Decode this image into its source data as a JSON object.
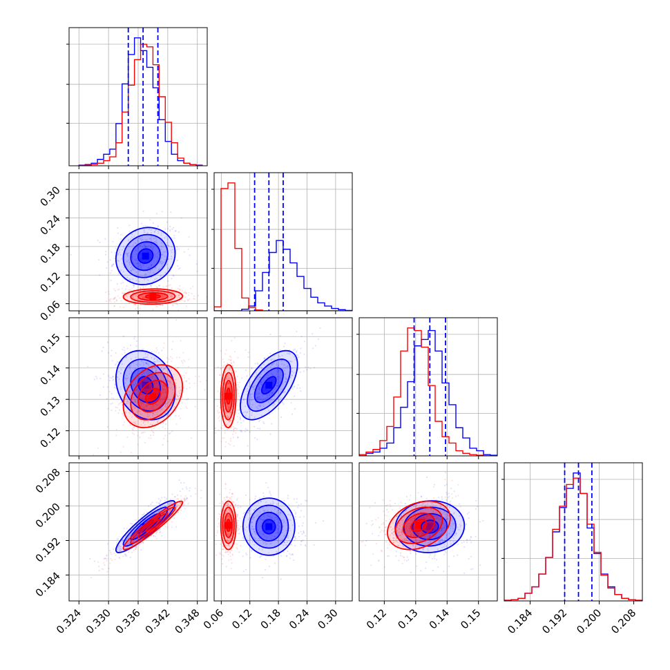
{
  "chart_data": {
    "type": "corner",
    "grid": true,
    "parameters": [
      {
        "range": [
          0.322,
          0.35
        ],
        "ticks": [
          "0.324",
          "0.330",
          "0.336",
          "0.342",
          "0.348"
        ]
      },
      {
        "range": [
          0.045,
          0.335
        ],
        "ticks": [
          "0.06",
          "0.12",
          "0.18",
          "0.24",
          "0.30"
        ]
      },
      {
        "range": [
          0.112,
          0.156
        ],
        "ticks": [
          "0.12",
          "0.13",
          "0.14",
          "0.15"
        ]
      },
      {
        "range": [
          0.178,
          0.21
        ],
        "ticks": [
          "0.184",
          "0.192",
          "0.200",
          "0.208"
        ]
      }
    ],
    "series": [
      {
        "color": "#0000ff",
        "mean": [
          0.3375,
          0.16,
          0.1345,
          0.1952
        ],
        "sd": [
          0.003,
          0.03,
          0.0055,
          0.003
        ],
        "corr": [
          [
            1,
            0.1,
            -0.2,
            0.9
          ],
          [
            0.1,
            1,
            0.6,
            0.0
          ],
          [
            -0.2,
            0.6,
            1,
            0.05
          ],
          [
            0.9,
            0.0,
            0.05,
            1
          ]
        ],
        "quantiles": [
          [
            0.334,
            0.337,
            0.34
          ],
          [
            0.13,
            0.16,
            0.19
          ],
          [
            0.1295,
            0.1345,
            0.1395
          ],
          [
            0.192,
            0.1952,
            0.1983
          ]
        ],
        "histograms": [
          {
            "edges": [
              0.324,
              0.349
            ],
            "counts": [
              0.005,
              0.01,
              0.02,
              0.05,
              0.09,
              0.13,
              0.33,
              0.64,
              0.87,
              1.0,
              0.9,
              0.77,
              0.61,
              0.36,
              0.19,
              0.09,
              0.04,
              0.02,
              0.01,
              0.005
            ]
          },
          {
            "edges": [
              0.045,
              0.335
            ],
            "counts": [
              0,
              0,
              0,
              0,
              0.02,
              0.06,
              0.25,
              0.48,
              0.73,
              0.88,
              0.77,
              0.6,
              0.43,
              0.28,
              0.17,
              0.1,
              0.06,
              0.03,
              0.015,
              0.005
            ]
          },
          {
            "edges": [
              0.112,
              0.156
            ],
            "counts": [
              0,
              0.02,
              0.03,
              0.06,
              0.1,
              0.22,
              0.38,
              0.58,
              0.86,
              0.91,
              0.98,
              0.82,
              0.57,
              0.4,
              0.22,
              0.14,
              0.06,
              0.04,
              0.01,
              0.005
            ]
          },
          {
            "edges": [
              0.178,
              0.21
            ],
            "counts": [
              0.005,
              0.01,
              0.02,
              0.06,
              0.11,
              0.21,
              0.34,
              0.54,
              0.73,
              0.88,
              1.0,
              0.84,
              0.57,
              0.37,
              0.21,
              0.11,
              0.05,
              0.02,
              0.01,
              0.005
            ]
          }
        ]
      },
      {
        "color": "#ff0000",
        "mean": [
          0.339,
          0.075,
          0.131,
          0.1955
        ],
        "sd": [
          0.003,
          0.008,
          0.005,
          0.0028
        ],
        "corr": [
          [
            1,
            0.05,
            0.3,
            0.95
          ],
          [
            0.05,
            1,
            0.05,
            0.0
          ],
          [
            0.3,
            0.05,
            1,
            0.3
          ],
          [
            0.95,
            0.0,
            0.3,
            1
          ]
        ],
        "quantiles": [],
        "histograms": [
          {
            "edges": [
              0.324,
              0.349
            ],
            "counts": [
              0.003,
              0.005,
              0.01,
              0.02,
              0.04,
              0.07,
              0.18,
              0.42,
              0.63,
              0.83,
              0.95,
              0.93,
              0.79,
              0.54,
              0.34,
              0.18,
              0.06,
              0.02,
              0.01,
              0.003
            ]
          },
          {
            "edges": [
              0.045,
              0.335
            ],
            "counts": [
              0.05,
              1.53,
              1.6,
              0.78,
              0.16,
              0.04,
              0.01,
              0,
              0,
              0,
              0,
              0,
              0,
              0,
              0,
              0,
              0,
              0,
              0,
              0
            ]
          },
          {
            "edges": [
              0.112,
              0.156
            ],
            "counts": [
              0.01,
              0.03,
              0.05,
              0.12,
              0.23,
              0.46,
              0.82,
              1.0,
              0.98,
              0.85,
              0.55,
              0.27,
              0.15,
              0.1,
              0.04,
              0.02,
              0.01,
              0.005,
              0,
              0
            ]
          },
          {
            "edges": [
              0.178,
              0.21
            ],
            "counts": [
              0.005,
              0.01,
              0.02,
              0.06,
              0.11,
              0.21,
              0.34,
              0.56,
              0.74,
              0.91,
              0.96,
              0.84,
              0.6,
              0.38,
              0.2,
              0.1,
              0.05,
              0.02,
              0.01,
              0.005
            ]
          }
        ]
      }
    ]
  }
}
